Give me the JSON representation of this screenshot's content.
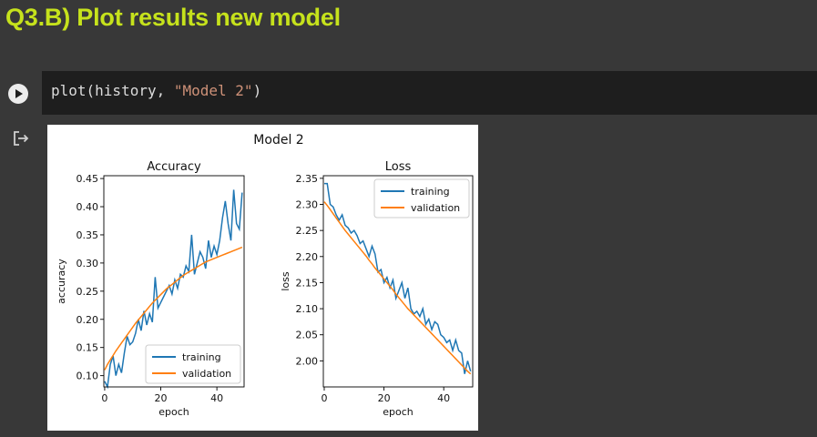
{
  "heading": "Q3.B) Plot results new model",
  "code": {
    "prefix": "plot(history, ",
    "string": "\"Model 2\"",
    "suffix": ")"
  },
  "icons": {
    "run": "play-circle-icon",
    "output": "output-arrow-icon"
  },
  "colors": {
    "training": "#1f77b4",
    "validation": "#ff7f0e",
    "heading": "#c6e21c"
  },
  "figure_title": "Model 2",
  "chart_data": [
    {
      "type": "line",
      "title": "Accuracy",
      "xlabel": "epoch",
      "ylabel": "accuracy",
      "xlim": [
        0,
        50
      ],
      "ylim": [
        0.08,
        0.455
      ],
      "xticks": [
        0,
        20,
        40
      ],
      "yticks": [
        0.1,
        0.15,
        0.2,
        0.25,
        0.3,
        0.35,
        0.4,
        0.45
      ],
      "ytick_labels": [
        "0.10",
        "0.15",
        "0.20",
        "0.25",
        "0.30",
        "0.35",
        "0.40",
        "0.45"
      ],
      "legend_position": "lower right",
      "series": [
        {
          "name": "training",
          "color": "#1f77b4",
          "values": [
            0.09,
            0.08,
            0.12,
            0.135,
            0.1,
            0.12,
            0.105,
            0.14,
            0.17,
            0.155,
            0.16,
            0.175,
            0.2,
            0.18,
            0.215,
            0.19,
            0.21,
            0.195,
            0.275,
            0.22,
            0.23,
            0.24,
            0.25,
            0.26,
            0.245,
            0.27,
            0.255,
            0.28,
            0.275,
            0.295,
            0.285,
            0.35,
            0.28,
            0.3,
            0.32,
            0.31,
            0.29,
            0.34,
            0.31,
            0.33,
            0.315,
            0.34,
            0.38,
            0.41,
            0.37,
            0.34,
            0.43,
            0.37,
            0.36,
            0.425
          ]
        },
        {
          "name": "validation",
          "color": "#ff7f0e",
          "values": [
            0.11,
            0.12,
            0.128,
            0.136,
            0.144,
            0.151,
            0.158,
            0.165,
            0.172,
            0.179,
            0.186,
            0.193,
            0.199,
            0.205,
            0.211,
            0.217,
            0.223,
            0.229,
            0.234,
            0.239,
            0.244,
            0.249,
            0.254,
            0.258,
            0.262,
            0.266,
            0.27,
            0.274,
            0.278,
            0.281,
            0.284,
            0.287,
            0.29,
            0.293,
            0.296,
            0.299,
            0.302,
            0.304,
            0.306,
            0.308,
            0.31,
            0.312,
            0.314,
            0.316,
            0.318,
            0.32,
            0.322,
            0.324,
            0.326,
            0.328
          ]
        }
      ]
    },
    {
      "type": "line",
      "title": "Loss",
      "xlabel": "epoch",
      "ylabel": "loss",
      "xlim": [
        0,
        50
      ],
      "ylim": [
        1.95,
        2.355
      ],
      "xticks": [
        0,
        20,
        40
      ],
      "yticks": [
        2.0,
        2.05,
        2.1,
        2.15,
        2.2,
        2.25,
        2.3,
        2.35
      ],
      "ytick_labels": [
        "2.00",
        "2.05",
        "2.10",
        "2.15",
        "2.20",
        "2.25",
        "2.30",
        "2.35"
      ],
      "legend_position": "upper right",
      "series": [
        {
          "name": "training",
          "color": "#1f77b4",
          "values": [
            2.34,
            2.34,
            2.3,
            2.295,
            2.28,
            2.27,
            2.28,
            2.26,
            2.255,
            2.245,
            2.25,
            2.24,
            2.225,
            2.23,
            2.215,
            2.2,
            2.22,
            2.205,
            2.17,
            2.175,
            2.15,
            2.16,
            2.14,
            2.155,
            2.12,
            2.135,
            2.15,
            2.12,
            2.14,
            2.1,
            2.09,
            2.095,
            2.085,
            2.1,
            2.07,
            2.08,
            2.06,
            2.075,
            2.07,
            2.05,
            2.045,
            2.035,
            2.04,
            2.02,
            2.04,
            2.02,
            2.015,
            1.975,
            2.0,
            1.98
          ]
        },
        {
          "name": "validation",
          "color": "#ff7f0e",
          "values": [
            2.305,
            2.298,
            2.29,
            2.282,
            2.274,
            2.266,
            2.258,
            2.25,
            2.243,
            2.236,
            2.229,
            2.222,
            2.215,
            2.208,
            2.201,
            2.193,
            2.186,
            2.178,
            2.171,
            2.164,
            2.157,
            2.15,
            2.143,
            2.136,
            2.128,
            2.121,
            2.114,
            2.107,
            2.1,
            2.094,
            2.088,
            2.082,
            2.076,
            2.07,
            2.064,
            2.058,
            2.052,
            2.046,
            2.04,
            2.034,
            2.028,
            2.022,
            2.016,
            2.01,
            2.004,
            1.998,
            1.992,
            1.986,
            1.98,
            1.975
          ]
        }
      ]
    }
  ]
}
